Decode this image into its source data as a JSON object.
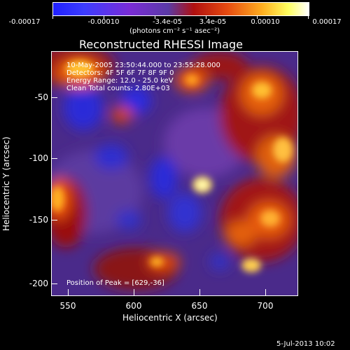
{
  "colorbar": {
    "labels": [
      "-0.00017",
      "-0.00010",
      "-3.4e-05",
      "3.4e-05",
      "0.00010",
      "0.00017"
    ],
    "units": "(photons cm⁻² s⁻¹ asec⁻²)"
  },
  "image": {
    "title": "Reconstructed RHESSI Image",
    "info_lines": [
      "10-May-2005 23:50:44.000 to 23:55:28.000",
      "Detectors: 4F 5F 6F 7F 8F 9F 0",
      "Energy Range: 12.0 - 25.0 keV",
      "Clean    Total counts: 2.80E+03"
    ],
    "peak_label": "Position of Peak = [629,-36]",
    "x_axis": {
      "title": "Heliocentric X (arcsec)",
      "ticks": [
        "550",
        "600",
        "650",
        "700"
      ]
    },
    "y_axis": {
      "title": "Heliocentric Y (arcsec)",
      "ticks": [
        "-50",
        "-100",
        "-150",
        "-200"
      ]
    }
  },
  "footer": {
    "timestamp": "5-Jul-2013 10:02"
  }
}
